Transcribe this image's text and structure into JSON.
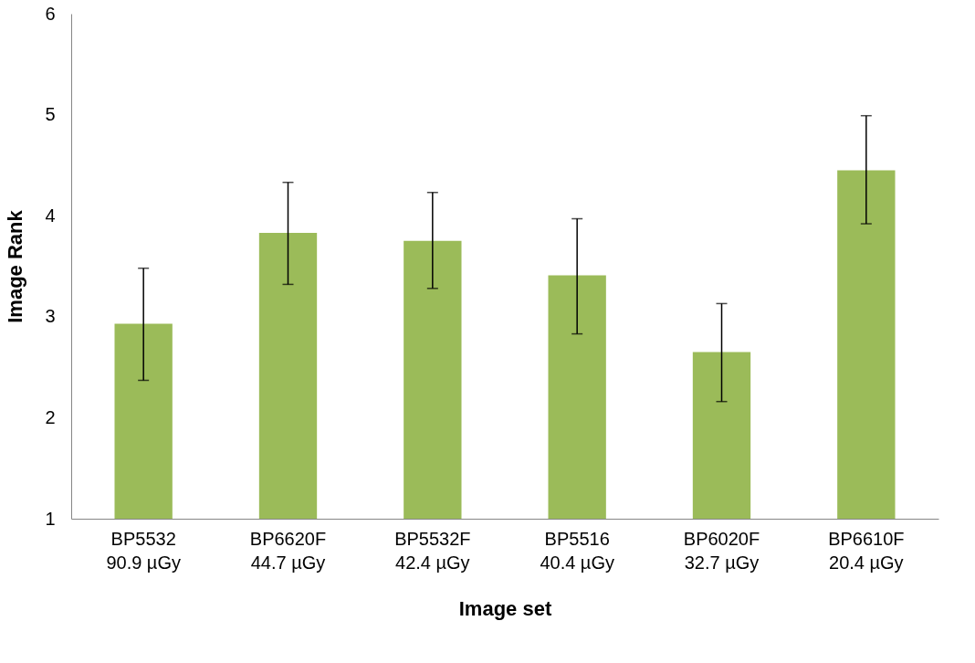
{
  "chart_data": {
    "type": "bar",
    "xlabel": "Image set",
    "ylabel": "Image Rank",
    "categories": [
      "BP5532\n90.9 µGy",
      "BP6620F\n44.7 µGy",
      "BP5532F\n42.4 µGy",
      "BP5516\n40.4 µGy",
      "BP6020F\n32.7 µGy",
      "BP6610F\n20.4 µGy"
    ],
    "values": [
      2.93,
      3.83,
      3.75,
      3.41,
      2.65,
      4.45
    ],
    "errors": [
      [
        2.37,
        3.48
      ],
      [
        3.32,
        4.33
      ],
      [
        3.28,
        4.23
      ],
      [
        2.83,
        3.97
      ],
      [
        2.16,
        3.13
      ],
      [
        3.92,
        4.99
      ]
    ],
    "color": "#9bbb59",
    "ylim": [
      1,
      6
    ],
    "yticks": [
      1,
      2,
      3,
      4,
      5,
      6
    ],
    "grid": false
  }
}
